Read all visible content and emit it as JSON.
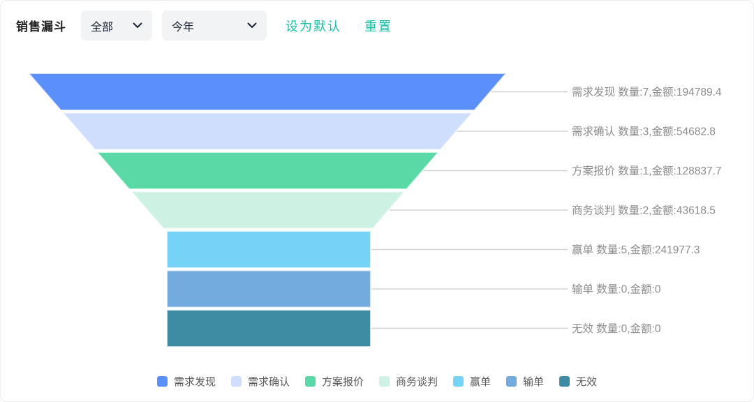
{
  "header": {
    "title": "销售漏斗",
    "filter_dropdown": {
      "value": "全部"
    },
    "time_dropdown": {
      "value": "今年"
    },
    "set_default_label": "设为默认",
    "reset_label": "重置",
    "link_color": "#13bfa6"
  },
  "chart_data": {
    "type": "funnel",
    "title": "销售漏斗",
    "label_format": "{name} 数量:{count},金额:{amount}",
    "count_prefix": "数量:",
    "amount_prefix": "金额:",
    "legend_position": "bottom",
    "label_color": "#8c8c8c",
    "leader_line_color": "#d4d4d4",
    "stages": [
      {
        "name": "需求发现",
        "count": 7,
        "amount": 194789.4,
        "color": "#5B8FF9"
      },
      {
        "name": "需求确认",
        "count": 3,
        "amount": 54682.8,
        "color": "#CFDEFC"
      },
      {
        "name": "方案报价",
        "count": 1,
        "amount": 128837.7,
        "color": "#5AD8A6"
      },
      {
        "name": "商务谈判",
        "count": 2,
        "amount": 43618.5,
        "color": "#CDF2E3"
      },
      {
        "name": "赢单",
        "count": 5,
        "amount": 241977.3,
        "color": "#76D3F7"
      },
      {
        "name": "输单",
        "count": 0,
        "amount": 0,
        "color": "#74ABDF"
      },
      {
        "name": "无效",
        "count": 0,
        "amount": 0,
        "color": "#3E8CA3"
      }
    ]
  }
}
